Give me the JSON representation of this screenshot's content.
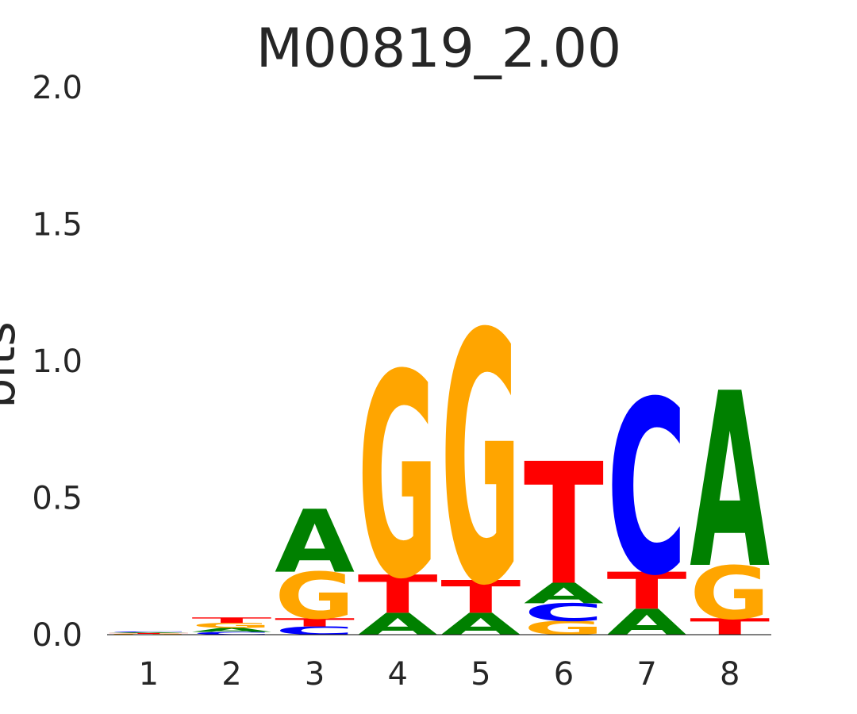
{
  "chart_data": {
    "type": "sequence-logo",
    "title": "M00819_2.00",
    "xlabel": "",
    "ylabel": "bits",
    "ylim": [
      0,
      2.0
    ],
    "yticks": [
      "0.0",
      "0.5",
      "1.0",
      "1.5",
      "2.0"
    ],
    "positions": [
      "1",
      "2",
      "3",
      "4",
      "5",
      "6",
      "7",
      "8"
    ],
    "colors": {
      "A": "#008000",
      "C": "#0000ff",
      "G": "#ffa500",
      "T": "#ff0000"
    },
    "stacks": [
      [
        {
          "base": "G",
          "bits": 0.003
        },
        {
          "base": "T",
          "bits": 0.003
        },
        {
          "base": "A",
          "bits": 0.003
        },
        {
          "base": "C",
          "bits": 0.003
        }
      ],
      [
        {
          "base": "C",
          "bits": 0.01
        },
        {
          "base": "A",
          "bits": 0.015
        },
        {
          "base": "G",
          "bits": 0.018
        },
        {
          "base": "T",
          "bits": 0.02
        }
      ],
      [
        {
          "base": "C",
          "bits": 0.03
        },
        {
          "base": "T",
          "bits": 0.03
        },
        {
          "base": "G",
          "bits": 0.17
        },
        {
          "base": "A",
          "bits": 0.23
        }
      ],
      [
        {
          "base": "A",
          "bits": 0.08
        },
        {
          "base": "T",
          "bits": 0.14
        },
        {
          "base": "G",
          "bits": 0.745
        }
      ],
      [
        {
          "base": "A",
          "bits": 0.08
        },
        {
          "base": "T",
          "bits": 0.12
        },
        {
          "base": "G",
          "bits": 0.915
        }
      ],
      [
        {
          "base": "G",
          "bits": 0.05
        },
        {
          "base": "C",
          "bits": 0.065
        },
        {
          "base": "A",
          "bits": 0.075
        },
        {
          "base": "T",
          "bits": 0.445
        }
      ],
      [
        {
          "base": "A",
          "bits": 0.095
        },
        {
          "base": "T",
          "bits": 0.135
        },
        {
          "base": "C",
          "bits": 0.635
        }
      ],
      [
        {
          "base": "T",
          "bits": 0.06
        },
        {
          "base": "G",
          "bits": 0.195
        },
        {
          "base": "A",
          "bits": 0.64
        }
      ]
    ]
  }
}
